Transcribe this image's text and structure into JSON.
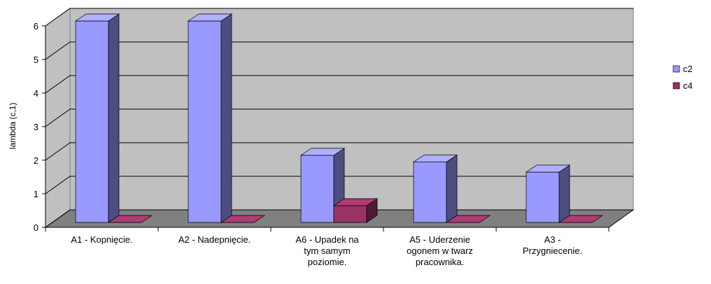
{
  "chart_data": {
    "type": "bar3d",
    "y_label": "lambda (c,1)",
    "categories": [
      "A1 - Kopnięcie.",
      "A2 - Nadepnięcie.",
      "A6 - Upadek na tym samym poziomie.",
      "A5 - Uderzenie ogonem w twarz pracownika.",
      "A3 - Przygniecenie."
    ],
    "series": [
      {
        "name": "c2",
        "color": "#9999ff",
        "values": [
          6,
          6,
          2,
          1.8,
          1.5
        ]
      },
      {
        "name": "c4",
        "color": "#993366",
        "values": [
          0,
          0,
          0.5,
          0,
          0
        ]
      }
    ],
    "ylim": [
      0,
      6
    ],
    "yticks": [
      0,
      1,
      2,
      3,
      4,
      5,
      6
    ],
    "grid": true,
    "legend": "right"
  }
}
